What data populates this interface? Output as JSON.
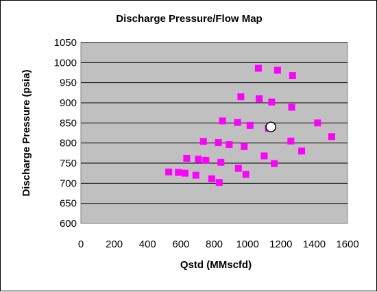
{
  "chart_data": {
    "type": "scatter",
    "title": "Discharge Pressure/Flow Map",
    "xlabel": "Qstd (MMscfd)",
    "ylabel": "Discharge Pressure (psia)",
    "xlim": [
      0,
      1600
    ],
    "ylim": [
      600,
      1050
    ],
    "xticks": [
      "0",
      "200",
      "400",
      "600",
      "800",
      "1000",
      "1200",
      "1400",
      "1600"
    ],
    "yticks": [
      "600",
      "650",
      "700",
      "750",
      "800",
      "850",
      "900",
      "950",
      "1000",
      "1050"
    ],
    "grid": "horizontal",
    "plot_background": "#c0c0c0",
    "series": [
      {
        "marker": "square",
        "color": "#ff00ff",
        "points": [
          [
            527,
            728
          ],
          [
            585,
            727
          ],
          [
            625,
            725
          ],
          [
            635,
            762
          ],
          [
            690,
            720
          ],
          [
            705,
            760
          ],
          [
            735,
            804
          ],
          [
            750,
            757
          ],
          [
            785,
            711
          ],
          [
            825,
            801
          ],
          [
            830,
            702
          ],
          [
            840,
            752
          ],
          [
            850,
            855
          ],
          [
            890,
            796
          ],
          [
            940,
            851
          ],
          [
            945,
            737
          ],
          [
            960,
            915
          ],
          [
            980,
            791
          ],
          [
            990,
            722
          ],
          [
            1015,
            844
          ],
          [
            1065,
            986
          ],
          [
            1070,
            910
          ],
          [
            1100,
            768
          ],
          [
            1125,
            837
          ],
          [
            1145,
            902
          ],
          [
            1160,
            749
          ],
          [
            1180,
            981
          ],
          [
            1260,
            805
          ],
          [
            1265,
            889
          ],
          [
            1270,
            968
          ],
          [
            1325,
            780
          ],
          [
            1420,
            850
          ],
          [
            1505,
            816
          ]
        ]
      },
      {
        "marker": "circle",
        "color": "#ffffff",
        "points": [
          [
            1140,
            840
          ]
        ]
      }
    ]
  }
}
